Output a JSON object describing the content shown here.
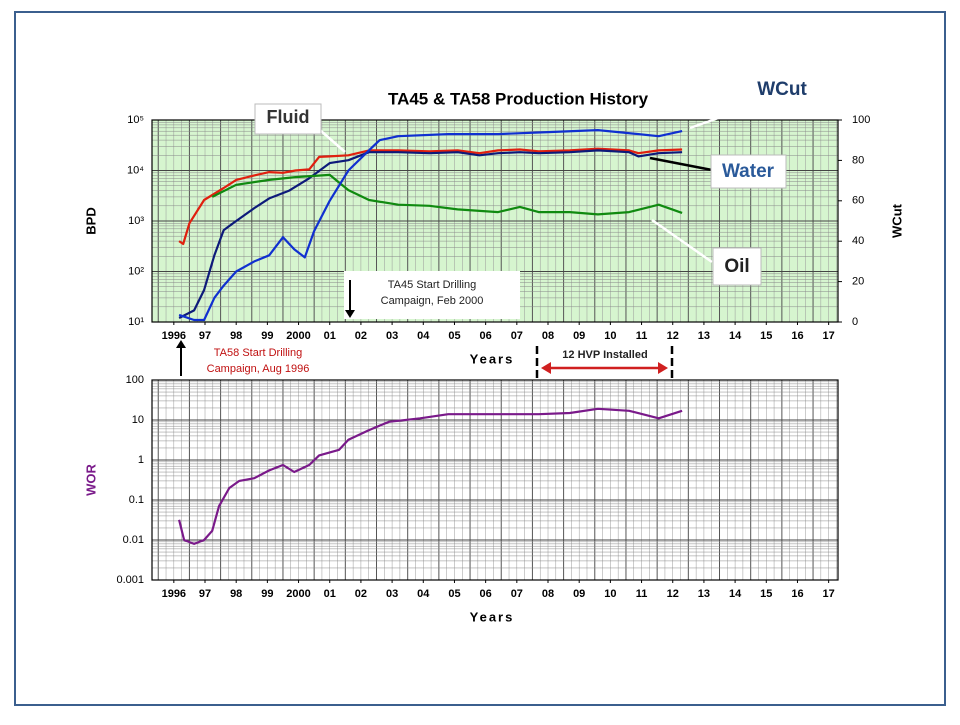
{
  "chart_data": [
    {
      "type": "line",
      "title": "TA45 & TA58 Production History",
      "x_label": "Years",
      "y_label": "BPD",
      "y2_label": "WCut",
      "xlim": [
        1995.8,
        2017.8
      ],
      "xticks": [
        {
          "value": 1996.5,
          "label": "1996"
        },
        {
          "value": 1997.5,
          "label": "97"
        },
        {
          "value": 1998.5,
          "label": "98"
        },
        {
          "value": 1999.5,
          "label": "99"
        },
        {
          "value": 2000.5,
          "label": "2000"
        },
        {
          "value": 2001.5,
          "label": "01"
        },
        {
          "value": 2002.5,
          "label": "02"
        },
        {
          "value": 2003.5,
          "label": "03"
        },
        {
          "value": 2004.5,
          "label": "04"
        },
        {
          "value": 2005.5,
          "label": "05"
        },
        {
          "value": 2006.5,
          "label": "06"
        },
        {
          "value": 2007.5,
          "label": "07"
        },
        {
          "value": 2008.5,
          "label": "08"
        },
        {
          "value": 2009.5,
          "label": "09"
        },
        {
          "value": 2010.5,
          "label": "10"
        },
        {
          "value": 2011.5,
          "label": "11"
        },
        {
          "value": 2012.5,
          "label": "12"
        },
        {
          "value": 2013.5,
          "label": "13"
        },
        {
          "value": 2014.5,
          "label": "14"
        },
        {
          "value": 2015.5,
          "label": "15"
        },
        {
          "value": 2016.5,
          "label": "16"
        },
        {
          "value": 2017.5,
          "label": "17"
        }
      ],
      "y_scale": "log",
      "ylim": [
        10,
        100000
      ],
      "yticks": [
        {
          "value": 10,
          "label": "10¹"
        },
        {
          "value": 100,
          "label": "10²"
        },
        {
          "value": 1000,
          "label": "10³"
        },
        {
          "value": 10000,
          "label": "10⁴"
        },
        {
          "value": 100000,
          "label": "10⁵"
        }
      ],
      "y2lim": [
        0,
        100
      ],
      "y2ticks": [
        0,
        20,
        40,
        60,
        80,
        100
      ],
      "grid": true,
      "background": "#d6f5cf",
      "series": [
        {
          "name": "Fluid",
          "color": "#e0200f",
          "x": [
            1996.67,
            1996.8,
            1997.0,
            1997.47,
            1998.1,
            1998.5,
            1999.08,
            1999.56,
            2000.0,
            2000.4,
            2000.84,
            2001.16,
            2001.5,
            2002.1,
            2002.76,
            2003.7,
            2004.7,
            2005.6,
            2006.3,
            2006.9,
            2007.6,
            2008.2,
            2009.2,
            2010.1,
            2011.1,
            2011.4,
            2012.05,
            2012.8
          ],
          "values": [
            400,
            350,
            900,
            2600,
            4500,
            6500,
            8000,
            9300,
            9000,
            10000,
            10500,
            18600,
            19000,
            20000,
            25000,
            25000,
            24000,
            25000,
            22000,
            25000,
            26000,
            24000,
            25000,
            27000,
            25000,
            22000,
            25000,
            26000
          ]
        },
        {
          "name": "Water",
          "color": "#0d1a7a",
          "x": [
            1996.67,
            1997.15,
            1997.47,
            1997.8,
            1998.1,
            1998.5,
            1999.08,
            1999.56,
            2000.2,
            2000.84,
            2001.5,
            2002.1,
            2002.76,
            2003.7,
            2004.7,
            2005.6,
            2006.3,
            2006.9,
            2007.6,
            2008.2,
            2009.2,
            2010.1,
            2011.1,
            2011.4,
            2012.05,
            2012.8
          ],
          "values": [
            12,
            17,
            43,
            210,
            660,
            1000,
            1800,
            2800,
            4000,
            7000,
            14000,
            16000,
            23000,
            23000,
            22000,
            23000,
            20000,
            22000,
            23000,
            22000,
            23000,
            25000,
            23000,
            19000,
            22000,
            23000
          ]
        },
        {
          "name": "Oil",
          "color": "#108a10",
          "x": [
            1997.73,
            1998.5,
            1999.56,
            2000.4,
            2001.5,
            2002.1,
            2002.76,
            2003.7,
            2004.7,
            2005.6,
            2006.9,
            2007.6,
            2008.2,
            2009.2,
            2010.1,
            2011.1,
            2012.05,
            2012.8
          ],
          "values": [
            3000,
            5200,
            6500,
            7400,
            8200,
            4100,
            2600,
            2100,
            2000,
            1700,
            1500,
            1900,
            1500,
            1500,
            1350,
            1500,
            2100,
            1450
          ]
        },
        {
          "name": "WCut",
          "color": "#1030d0",
          "axis": "y2",
          "x": [
            1996.67,
            1997.15,
            1997.47,
            1997.8,
            1998.1,
            1998.5,
            1999.08,
            1999.56,
            2000.0,
            2000.36,
            2000.7,
            2001.0,
            2001.5,
            2002.1,
            2002.76,
            2003.1,
            2003.7,
            2005.3,
            2006.9,
            2008.5,
            2010.1,
            2011.4,
            2012.05,
            2012.8
          ],
          "values": [
            3.5,
            1,
            1,
            12,
            18,
            25,
            30,
            33,
            42,
            36,
            32,
            45,
            60,
            75,
            85,
            90,
            92,
            93,
            93,
            94,
            95,
            93,
            92,
            94.5
          ]
        }
      ],
      "annotations": [
        {
          "text": [
            "WCut"
          ]
        },
        {
          "text": [
            "Fluid"
          ]
        },
        {
          "text": [
            "Water"
          ]
        },
        {
          "text": [
            "Oil"
          ]
        },
        {
          "text": [
            "TA45 Start Drilling",
            "Campaign, Feb 2000"
          ]
        },
        {
          "text": [
            "TA58 Start Drilling",
            "Campaign, Aug 1996"
          ]
        },
        {
          "text": [
            "12 HVP Installed"
          ]
        }
      ]
    },
    {
      "type": "line",
      "x_label": "Years",
      "y_label": "WOR",
      "xlim": [
        1995.8,
        2017.8
      ],
      "xticks": [
        {
          "value": 1996.5,
          "label": "1996"
        },
        {
          "value": 1997.5,
          "label": "97"
        },
        {
          "value": 1998.5,
          "label": "98"
        },
        {
          "value": 1999.5,
          "label": "99"
        },
        {
          "value": 2000.5,
          "label": "2000"
        },
        {
          "value": 2001.5,
          "label": "01"
        },
        {
          "value": 2002.5,
          "label": "02"
        },
        {
          "value": 2003.5,
          "label": "03"
        },
        {
          "value": 2004.5,
          "label": "04"
        },
        {
          "value": 2005.5,
          "label": "05"
        },
        {
          "value": 2006.5,
          "label": "06"
        },
        {
          "value": 2007.5,
          "label": "07"
        },
        {
          "value": 2008.5,
          "label": "08"
        },
        {
          "value": 2009.5,
          "label": "09"
        },
        {
          "value": 2010.5,
          "label": "10"
        },
        {
          "value": 2011.5,
          "label": "11"
        },
        {
          "value": 2012.5,
          "label": "12"
        },
        {
          "value": 2013.5,
          "label": "13"
        },
        {
          "value": 2014.5,
          "label": "14"
        },
        {
          "value": 2015.5,
          "label": "15"
        },
        {
          "value": 2016.5,
          "label": "16"
        },
        {
          "value": 2017.5,
          "label": "17"
        }
      ],
      "y_scale": "log",
      "ylim": [
        0.001,
        100
      ],
      "yticks": [
        0.001,
        0.01,
        0.1,
        1,
        10,
        100
      ],
      "grid": true,
      "background": "#ffffff",
      "series": [
        {
          "name": "WOR",
          "color": "#7a1a8a",
          "x": [
            1996.67,
            1996.83,
            1997.15,
            1997.47,
            1997.73,
            1997.95,
            1998.28,
            1998.6,
            1999.08,
            1999.56,
            2000.0,
            2000.36,
            2000.84,
            2001.16,
            2001.8,
            2002.1,
            2002.76,
            2003.4,
            2004.4,
            2005.3,
            2006.9,
            2008.2,
            2009.2,
            2010.1,
            2011.1,
            2012.05,
            2012.8
          ],
          "values": [
            0.032,
            0.01,
            0.008,
            0.01,
            0.017,
            0.07,
            0.2,
            0.3,
            0.35,
            0.55,
            0.75,
            0.5,
            0.75,
            1.3,
            1.8,
            3.2,
            5.6,
            9,
            11,
            14,
            14,
            14,
            15,
            19,
            17,
            11,
            17
          ]
        }
      ]
    }
  ]
}
